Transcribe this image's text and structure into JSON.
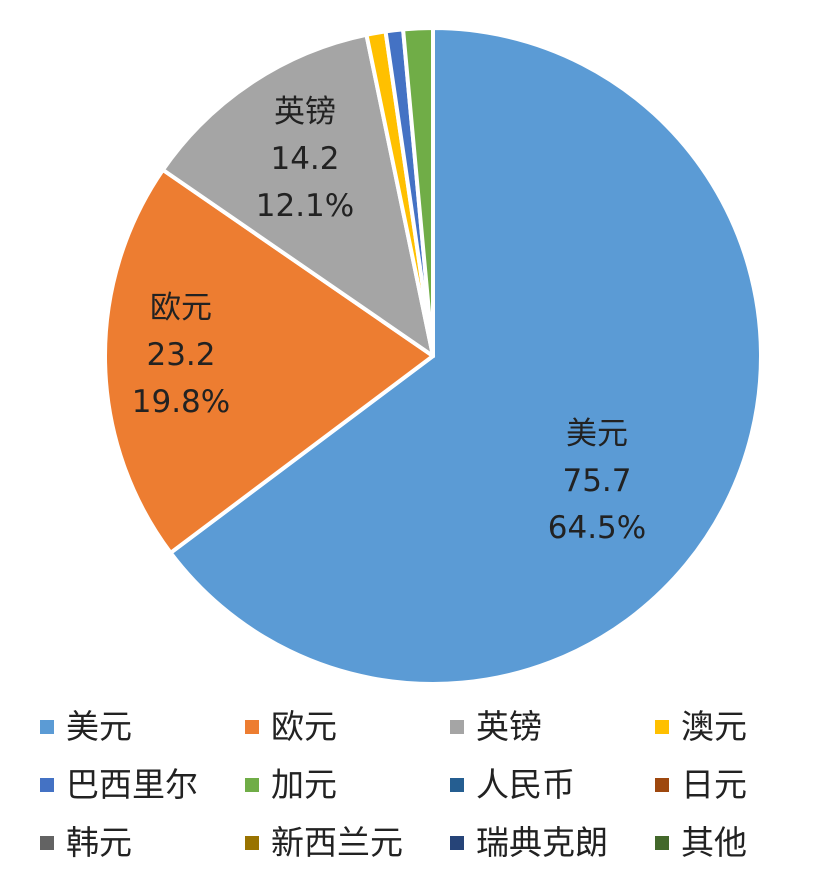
{
  "chart_data": {
    "type": "pie",
    "slices": [
      {
        "label": "美元",
        "value": 75.7,
        "percent": "64.5%",
        "color": "#5B9BD5",
        "show_label": true
      },
      {
        "label": "欧元",
        "value": 23.2,
        "percent": "19.8%",
        "color": "#ED7D31",
        "show_label": true
      },
      {
        "label": "英镑",
        "value": 14.2,
        "percent": "12.1%",
        "color": "#A5A5A5",
        "show_label": true
      },
      {
        "label": "澳元",
        "value": 1.1,
        "color": "#FFC000",
        "show_label": false
      },
      {
        "label": "巴西里尔",
        "value": 1.0,
        "color": "#4472C4",
        "show_label": false
      },
      {
        "label": "加元",
        "value": 1.7,
        "color": "#70AD47",
        "show_label": false
      },
      {
        "label": "人民币",
        "value": 0.0,
        "color": "#255E91",
        "show_label": false
      },
      {
        "label": "日元",
        "value": 0.0,
        "color": "#9E480E",
        "show_label": false
      },
      {
        "label": "韩元",
        "value": 0.0,
        "color": "#636363",
        "show_label": false
      },
      {
        "label": "新西兰元",
        "value": 0.0,
        "color": "#997300",
        "show_label": false
      },
      {
        "label": "瑞典克朗",
        "value": 0.0,
        "color": "#264478",
        "show_label": false
      },
      {
        "label": "其他",
        "value": 0.0,
        "color": "#43682B",
        "show_label": false
      }
    ],
    "legend": {
      "position": "bottom",
      "entries": [
        "美元",
        "欧元",
        "英镑",
        "澳元",
        "巴西里尔",
        "加元",
        "人民币",
        "日元",
        "韩元",
        "新西兰元",
        "瑞典克朗",
        "其他"
      ]
    }
  }
}
